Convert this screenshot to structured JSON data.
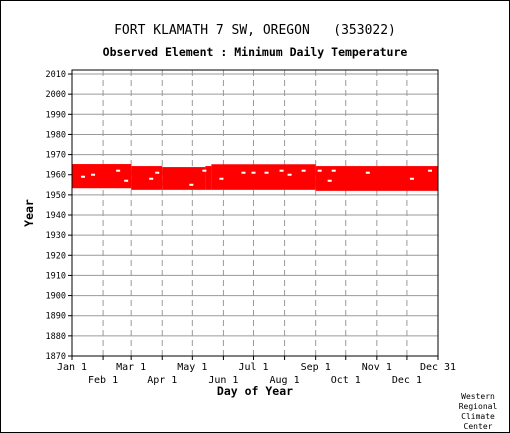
{
  "title": "FORT KLAMATH 7 SW, OREGON   (353022)",
  "subtitle": "Observed Element : Minimum Daily Temperature",
  "credit": [
    "Western",
    "Regional",
    "Climate",
    "Center"
  ],
  "chart_data": {
    "type": "scatter",
    "xlabel": "Day of Year",
    "ylabel": "Year",
    "ylim": [
      1870,
      2012
    ],
    "yticks": [
      1870,
      1880,
      1890,
      1900,
      1910,
      1920,
      1930,
      1940,
      1950,
      1960,
      1970,
      1980,
      1990,
      2000,
      2010
    ],
    "xlim": [
      1,
      366
    ],
    "xticks_top": [
      {
        "label": "Jan 1",
        "day": 1
      },
      {
        "label": "Mar 1",
        "day": 60
      },
      {
        "label": "May 1",
        "day": 121
      },
      {
        "label": "Jul 1",
        "day": 182
      },
      {
        "label": "Sep 1",
        "day": 244
      },
      {
        "label": "Nov 1",
        "day": 305
      },
      {
        "label": "Dec 31",
        "day": 366
      }
    ],
    "xticks_bottom": [
      {
        "label": "Feb 1",
        "day": 32
      },
      {
        "label": "Apr 1",
        "day": 91
      },
      {
        "label": "Jun 1",
        "day": 152
      },
      {
        "label": "Aug 1",
        "day": 213
      },
      {
        "label": "Oct 1",
        "day": 274
      },
      {
        "label": "Dec 1",
        "day": 335
      }
    ],
    "grid": true,
    "series_color": "#ff0000",
    "observed_blocks": [
      {
        "start_day": 1,
        "end_day": 60,
        "start_year": 1953.3,
        "end_year": 1965.3
      },
      {
        "start_day": 60,
        "end_day": 91,
        "start_year": 1952.5,
        "end_year": 1964.3
      },
      {
        "start_day": 91,
        "end_day": 134,
        "start_year": 1952.5,
        "end_year": 1963.8
      },
      {
        "start_day": 134,
        "end_day": 140,
        "start_year": 1952.5,
        "end_year": 1964.3
      },
      {
        "start_day": 140,
        "end_day": 244,
        "start_year": 1952.5,
        "end_year": 1965.2
      },
      {
        "start_day": 244,
        "end_day": 366,
        "start_year": 1952.0,
        "end_year": 1964.3
      }
    ],
    "missing_marks": [
      {
        "day": 12,
        "year": 1959
      },
      {
        "day": 22,
        "year": 1960
      },
      {
        "day": 47,
        "year": 1962
      },
      {
        "day": 55,
        "year": 1957
      },
      {
        "day": 80,
        "year": 1958
      },
      {
        "day": 86,
        "year": 1961
      },
      {
        "day": 120,
        "year": 1955
      },
      {
        "day": 133,
        "year": 1962
      },
      {
        "day": 150,
        "year": 1958
      },
      {
        "day": 172,
        "year": 1961
      },
      {
        "day": 182,
        "year": 1961
      },
      {
        "day": 195,
        "year": 1961
      },
      {
        "day": 210,
        "year": 1962
      },
      {
        "day": 218,
        "year": 1960
      },
      {
        "day": 232,
        "year": 1962
      },
      {
        "day": 248,
        "year": 1962
      },
      {
        "day": 258,
        "year": 1957
      },
      {
        "day": 262,
        "year": 1962
      },
      {
        "day": 296,
        "year": 1961
      },
      {
        "day": 340,
        "year": 1958
      },
      {
        "day": 358,
        "year": 1962
      }
    ]
  }
}
